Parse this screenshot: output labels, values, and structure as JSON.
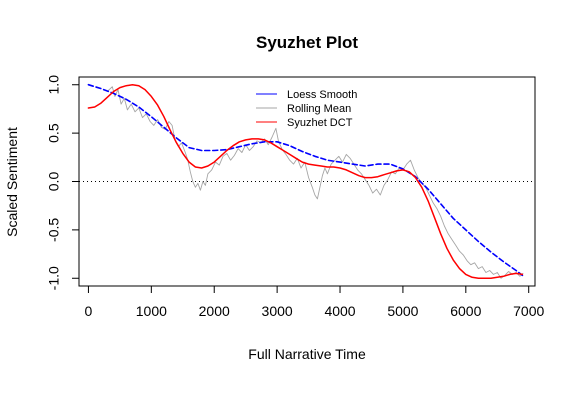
{
  "chart_data": {
    "type": "line",
    "title": "Syuzhet Plot",
    "xlabel": "Full Narrative Time",
    "ylabel": "Scaled Sentiment",
    "xlim": [
      -150,
      7100
    ],
    "ylim": [
      -1.08,
      1.08
    ],
    "x_ticks": [
      0,
      1000,
      2000,
      3000,
      4000,
      5000,
      6000,
      7000
    ],
    "y_ticks": [
      -1.0,
      -0.5,
      0.0,
      0.5,
      1.0
    ],
    "x_tick_labels": [
      "0",
      "1000",
      "2000",
      "3000",
      "4000",
      "5000",
      "6000",
      "7000"
    ],
    "y_tick_labels": [
      "-1.0",
      "-0.5",
      "0.0",
      "0.5",
      "1.0"
    ],
    "reference_line": {
      "y": 0.0,
      "style": "dotted",
      "color": "#000000"
    },
    "legend": {
      "position": "top-center",
      "entries": [
        {
          "label": "Loess Smooth",
          "color": "#0000ff"
        },
        {
          "label": "Rolling Mean",
          "color": "#a6a6a6"
        },
        {
          "label": "Syuzhet DCT",
          "color": "#ff0000"
        }
      ]
    },
    "series": [
      {
        "name": "Rolling Mean",
        "color": "#a6a6a6",
        "style": "solid",
        "points": [
          [
            300,
            0.93
          ],
          [
            380,
            0.98
          ],
          [
            420,
            0.88
          ],
          [
            470,
            0.95
          ],
          [
            520,
            0.8
          ],
          [
            570,
            0.86
          ],
          [
            620,
            0.74
          ],
          [
            680,
            0.8
          ],
          [
            740,
            0.72
          ],
          [
            800,
            0.76
          ],
          [
            860,
            0.66
          ],
          [
            920,
            0.7
          ],
          [
            980,
            0.62
          ],
          [
            1040,
            0.58
          ],
          [
            1100,
            0.64
          ],
          [
            1160,
            0.56
          ],
          [
            1220,
            0.54
          ],
          [
            1280,
            0.62
          ],
          [
            1330,
            0.58
          ],
          [
            1380,
            0.42
          ],
          [
            1430,
            0.36
          ],
          [
            1480,
            0.4
          ],
          [
            1540,
            0.3
          ],
          [
            1580,
            0.22
          ],
          [
            1620,
            0.1
          ],
          [
            1660,
            0.0
          ],
          [
            1700,
            -0.06
          ],
          [
            1740,
            -0.02
          ],
          [
            1780,
            -0.09
          ],
          [
            1820,
            0.0
          ],
          [
            1860,
            -0.04
          ],
          [
            1900,
            0.08
          ],
          [
            1960,
            0.12
          ],
          [
            2020,
            0.2
          ],
          [
            2080,
            0.17
          ],
          [
            2140,
            0.26
          ],
          [
            2200,
            0.29
          ],
          [
            2260,
            0.22
          ],
          [
            2320,
            0.27
          ],
          [
            2380,
            0.34
          ],
          [
            2440,
            0.3
          ],
          [
            2500,
            0.38
          ],
          [
            2560,
            0.32
          ],
          [
            2620,
            0.36
          ],
          [
            2680,
            0.42
          ],
          [
            2740,
            0.4
          ],
          [
            2800,
            0.44
          ],
          [
            2860,
            0.38
          ],
          [
            2920,
            0.46
          ],
          [
            2980,
            0.55
          ],
          [
            3020,
            0.42
          ],
          [
            3080,
            0.33
          ],
          [
            3140,
            0.28
          ],
          [
            3200,
            0.22
          ],
          [
            3260,
            0.18
          ],
          [
            3320,
            0.24
          ],
          [
            3380,
            0.14
          ],
          [
            3440,
            0.2
          ],
          [
            3500,
            0.04
          ],
          [
            3560,
            -0.06
          ],
          [
            3600,
            -0.14
          ],
          [
            3640,
            -0.18
          ],
          [
            3680,
            -0.06
          ],
          [
            3720,
            0.06
          ],
          [
            3760,
            0.14
          ],
          [
            3800,
            0.08
          ],
          [
            3860,
            0.18
          ],
          [
            3920,
            0.22
          ],
          [
            3980,
            0.26
          ],
          [
            4040,
            0.2
          ],
          [
            4100,
            0.28
          ],
          [
            4160,
            0.24
          ],
          [
            4220,
            0.18
          ],
          [
            4280,
            0.12
          ],
          [
            4340,
            0.08
          ],
          [
            4400,
            0.02
          ],
          [
            4460,
            -0.04
          ],
          [
            4520,
            -0.12
          ],
          [
            4580,
            -0.08
          ],
          [
            4640,
            -0.14
          ],
          [
            4700,
            -0.04
          ],
          [
            4760,
            0.02
          ],
          [
            4820,
            0.1
          ],
          [
            4880,
            0.08
          ],
          [
            4940,
            0.14
          ],
          [
            5000,
            0.12
          ],
          [
            5060,
            0.18
          ],
          [
            5120,
            0.22
          ],
          [
            5180,
            0.12
          ],
          [
            5240,
            0.04
          ],
          [
            5300,
            -0.02
          ],
          [
            5360,
            -0.06
          ],
          [
            5420,
            -0.14
          ],
          [
            5480,
            -0.22
          ],
          [
            5540,
            -0.28
          ],
          [
            5600,
            -0.36
          ],
          [
            5660,
            -0.46
          ],
          [
            5720,
            -0.54
          ],
          [
            5780,
            -0.6
          ],
          [
            5840,
            -0.66
          ],
          [
            5900,
            -0.72
          ],
          [
            5960,
            -0.76
          ],
          [
            6020,
            -0.82
          ],
          [
            6080,
            -0.86
          ],
          [
            6140,
            -0.84
          ],
          [
            6200,
            -0.9
          ],
          [
            6260,
            -0.88
          ],
          [
            6320,
            -0.94
          ],
          [
            6380,
            -0.92
          ],
          [
            6440,
            -0.96
          ],
          [
            6500,
            -0.94
          ],
          [
            6560,
            -1.0
          ],
          [
            6620,
            -0.97
          ],
          [
            6680,
            -0.93
          ],
          [
            6740,
            -0.96
          ],
          [
            6800,
            -0.94
          ],
          [
            6860,
            -0.98
          ],
          [
            6910,
            -0.95
          ]
        ]
      },
      {
        "name": "Loess Smooth",
        "color": "#0000ff",
        "style": "dashed",
        "points": [
          [
            0,
            1.0
          ],
          [
            200,
            0.96
          ],
          [
            400,
            0.91
          ],
          [
            600,
            0.85
          ],
          [
            800,
            0.77
          ],
          [
            1000,
            0.67
          ],
          [
            1200,
            0.56
          ],
          [
            1400,
            0.45
          ],
          [
            1600,
            0.35
          ],
          [
            1800,
            0.32
          ],
          [
            2000,
            0.32
          ],
          [
            2200,
            0.33
          ],
          [
            2400,
            0.36
          ],
          [
            2600,
            0.39
          ],
          [
            2800,
            0.41
          ],
          [
            3000,
            0.41
          ],
          [
            3200,
            0.37
          ],
          [
            3400,
            0.31
          ],
          [
            3600,
            0.26
          ],
          [
            3800,
            0.22
          ],
          [
            4000,
            0.2
          ],
          [
            4200,
            0.18
          ],
          [
            4400,
            0.16
          ],
          [
            4600,
            0.18
          ],
          [
            4800,
            0.18
          ],
          [
            5000,
            0.13
          ],
          [
            5200,
            0.05
          ],
          [
            5400,
            -0.08
          ],
          [
            5600,
            -0.23
          ],
          [
            5800,
            -0.38
          ],
          [
            6000,
            -0.5
          ],
          [
            6200,
            -0.62
          ],
          [
            6400,
            -0.73
          ],
          [
            6600,
            -0.83
          ],
          [
            6800,
            -0.92
          ],
          [
            6900,
            -0.97
          ]
        ]
      },
      {
        "name": "Syuzhet DCT",
        "color": "#ff0000",
        "style": "solid",
        "points": [
          [
            0,
            0.76
          ],
          [
            100,
            0.77
          ],
          [
            200,
            0.81
          ],
          [
            300,
            0.87
          ],
          [
            400,
            0.93
          ],
          [
            500,
            0.97
          ],
          [
            600,
            0.99
          ],
          [
            700,
            1.0
          ],
          [
            800,
            0.99
          ],
          [
            900,
            0.95
          ],
          [
            1000,
            0.88
          ],
          [
            1100,
            0.79
          ],
          [
            1200,
            0.67
          ],
          [
            1300,
            0.53
          ],
          [
            1400,
            0.4
          ],
          [
            1500,
            0.29
          ],
          [
            1600,
            0.2
          ],
          [
            1700,
            0.15
          ],
          [
            1800,
            0.14
          ],
          [
            1900,
            0.16
          ],
          [
            2000,
            0.2
          ],
          [
            2100,
            0.26
          ],
          [
            2200,
            0.32
          ],
          [
            2300,
            0.37
          ],
          [
            2400,
            0.41
          ],
          [
            2500,
            0.43
          ],
          [
            2600,
            0.44
          ],
          [
            2700,
            0.44
          ],
          [
            2800,
            0.43
          ],
          [
            2900,
            0.4
          ],
          [
            3000,
            0.36
          ],
          [
            3100,
            0.32
          ],
          [
            3200,
            0.28
          ],
          [
            3300,
            0.24
          ],
          [
            3400,
            0.2
          ],
          [
            3500,
            0.18
          ],
          [
            3600,
            0.17
          ],
          [
            3700,
            0.16
          ],
          [
            3800,
            0.15
          ],
          [
            3900,
            0.15
          ],
          [
            4000,
            0.14
          ],
          [
            4100,
            0.12
          ],
          [
            4200,
            0.09
          ],
          [
            4300,
            0.06
          ],
          [
            4400,
            0.04
          ],
          [
            4500,
            0.04
          ],
          [
            4600,
            0.05
          ],
          [
            4700,
            0.07
          ],
          [
            4800,
            0.09
          ],
          [
            4900,
            0.11
          ],
          [
            5000,
            0.12
          ],
          [
            5100,
            0.1
          ],
          [
            5200,
            0.04
          ],
          [
            5300,
            -0.06
          ],
          [
            5400,
            -0.2
          ],
          [
            5500,
            -0.37
          ],
          [
            5600,
            -0.54
          ],
          [
            5700,
            -0.69
          ],
          [
            5800,
            -0.81
          ],
          [
            5900,
            -0.9
          ],
          [
            6000,
            -0.96
          ],
          [
            6100,
            -0.99
          ],
          [
            6200,
            -1.0
          ],
          [
            6300,
            -1.0
          ],
          [
            6400,
            -1.0
          ],
          [
            6500,
            -0.99
          ],
          [
            6600,
            -0.98
          ],
          [
            6700,
            -0.96
          ],
          [
            6800,
            -0.95
          ],
          [
            6900,
            -0.96
          ]
        ]
      }
    ]
  }
}
